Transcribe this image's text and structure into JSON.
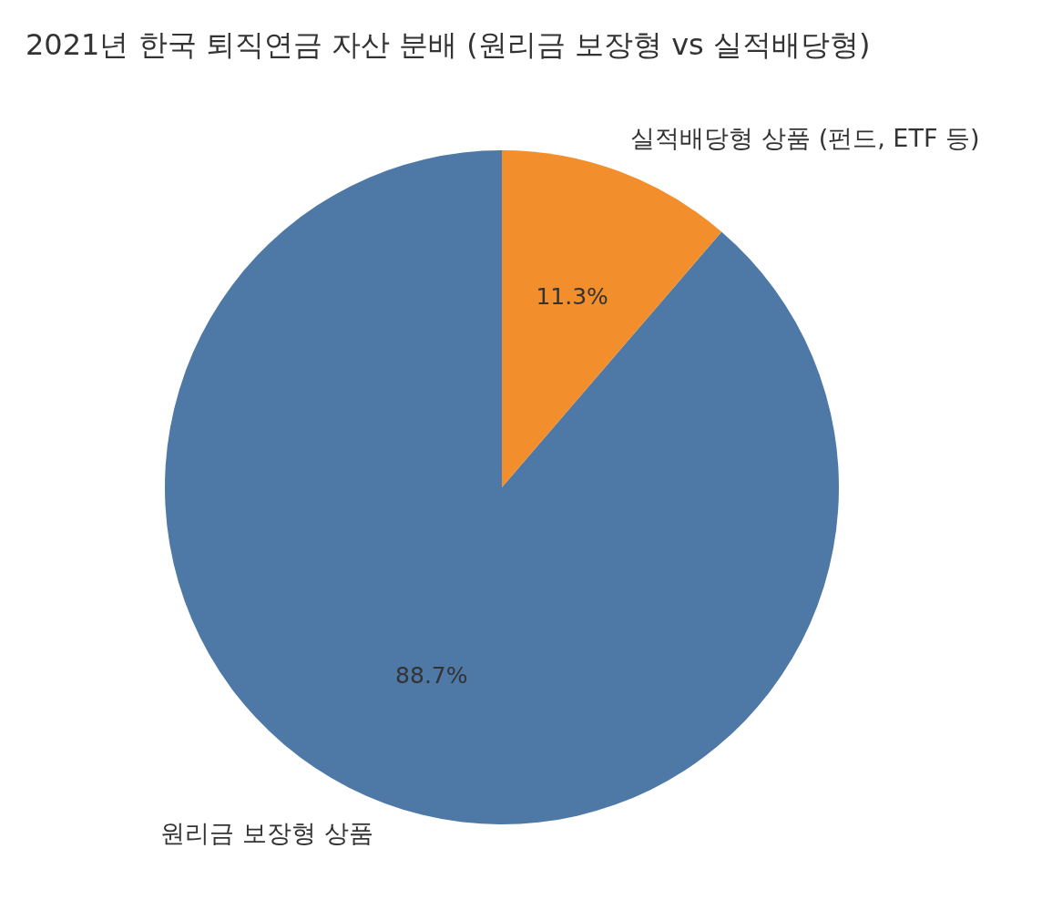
{
  "chart_data": {
    "type": "pie",
    "title": "2021년 한국 퇴직연금 자산 분배 (원리금 보장형 vs 실적배당형)",
    "categories": [
      "원리금 보장형 상품",
      "실적배당형 상품 (펀드, ETF 등)"
    ],
    "values": [
      88.7,
      11.3
    ],
    "colors": [
      "#4e79a7",
      "#f28e2b"
    ],
    "value_labels": [
      "88.7%",
      "11.3%"
    ]
  }
}
